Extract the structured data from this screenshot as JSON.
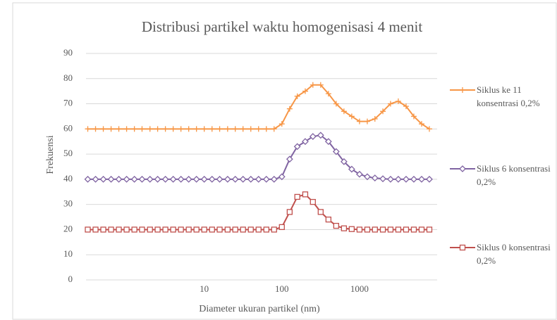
{
  "chart_data": {
    "type": "line",
    "title": "Distribusi partikel waktu homogenisasi 4 menit",
    "xlabel": "Diameter ukuran partikel (nm)",
    "ylabel": "Frekuensi",
    "xscale": "log",
    "grid": true,
    "legend": "right",
    "xlim": [
      0.3,
      10000
    ],
    "xticks": [
      10,
      100,
      1000
    ],
    "ylim": [
      0,
      90
    ],
    "yticks": [
      0,
      10,
      20,
      30,
      40,
      50,
      60,
      70,
      80,
      90
    ],
    "x": [
      0.316,
      0.398,
      0.501,
      0.631,
      0.794,
      1,
      1.26,
      1.58,
      2,
      2.51,
      3.16,
      3.98,
      5.01,
      6.31,
      7.94,
      10,
      12.6,
      15.8,
      20,
      25.1,
      31.6,
      39.8,
      50.1,
      63.1,
      79.4,
      100,
      126,
      158,
      200,
      251,
      316,
      398,
      501,
      631,
      794,
      1000,
      1260,
      1580,
      2000,
      2510,
      3160,
      3980,
      5010,
      6310,
      7940
    ],
    "series": [
      {
        "name": "Siklus ke 11 konsentrasi 0,2%",
        "color": "#f79646",
        "marker": "plus",
        "values": [
          60,
          60,
          60,
          60,
          60,
          60,
          60,
          60,
          60,
          60,
          60,
          60,
          60,
          60,
          60,
          60,
          60,
          60,
          60,
          60,
          60,
          60,
          60,
          60,
          60,
          62,
          68,
          73,
          75,
          77.5,
          77.5,
          74,
          70,
          67,
          65,
          63,
          63,
          64,
          67,
          70,
          71,
          69,
          65,
          62,
          60
        ]
      },
      {
        "name": "Siklus 6 konsentrasi 0,2%",
        "color": "#8064a2",
        "marker": "diamond",
        "values": [
          40,
          40,
          40,
          40,
          40,
          40,
          40,
          40,
          40,
          40,
          40,
          40,
          40,
          40,
          40,
          40,
          40,
          40,
          40,
          40,
          40,
          40,
          40,
          40,
          40,
          41,
          48,
          53,
          55,
          57,
          57.5,
          55,
          51,
          47,
          44,
          42,
          41,
          40.5,
          40.2,
          40,
          40,
          40,
          40,
          40,
          40
        ]
      },
      {
        "name": "Siklus 0 konsentrasi 0,2%",
        "color": "#c0504d",
        "marker": "square",
        "values": [
          20,
          20,
          20,
          20,
          20,
          20,
          20,
          20,
          20,
          20,
          20,
          20,
          20,
          20,
          20,
          20,
          20,
          20,
          20,
          20,
          20,
          20,
          20,
          20,
          20,
          21,
          27,
          33,
          34,
          31,
          27,
          24,
          21.5,
          20.5,
          20.2,
          20,
          20,
          20,
          20,
          20,
          20,
          20,
          20,
          20,
          20
        ]
      }
    ]
  }
}
